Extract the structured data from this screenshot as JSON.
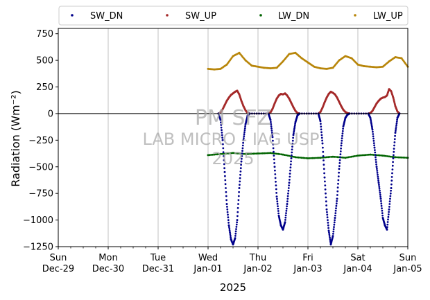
{
  "chart_data": {
    "type": "scatter",
    "title": "",
    "xlabel": "2025",
    "ylabel": "Radiation (Wm⁻²)",
    "ylim": [
      -1250,
      800
    ],
    "xlim": [
      "2024-12-29",
      "2025-01-05"
    ],
    "yticks": [
      750,
      500,
      250,
      0,
      -250,
      -500,
      -750,
      -1000,
      -1250
    ],
    "ytick_labels": [
      "750",
      "500",
      "250",
      "0",
      "−250",
      "−500",
      "−750",
      "−1000",
      "−1250"
    ],
    "xticks": [
      {
        "day": "Sun",
        "date": "Dec-29"
      },
      {
        "day": "Mon",
        "date": "Dec-30"
      },
      {
        "day": "Tue",
        "date": "Dec-31"
      },
      {
        "day": "Wed",
        "date": "Jan-01"
      },
      {
        "day": "Thu",
        "date": "Jan-02"
      },
      {
        "day": "Fri",
        "date": "Jan-03"
      },
      {
        "day": "Sat",
        "date": "Jan-04"
      },
      {
        "day": "Sun",
        "date": "Jan-05"
      }
    ],
    "grid": "vertical",
    "reference_line": 0,
    "legend_position": "top",
    "watermark": [
      "PM SFZ",
      "LAB MICRO - IAG USP",
      "2025"
    ],
    "series": [
      {
        "name": "SW_DN",
        "color": "#00008b",
        "x": [
          "2025-01-01T05:00",
          "2025-01-01T06:00",
          "2025-01-01T07:00",
          "2025-01-01T08:00",
          "2025-01-01T09:00",
          "2025-01-01T10:00",
          "2025-01-01T11:00",
          "2025-01-01T12:00",
          "2025-01-01T13:00",
          "2025-01-01T14:00",
          "2025-01-01T15:00",
          "2025-01-01T16:00",
          "2025-01-01T17:00",
          "2025-01-01T18:00",
          "2025-01-01T19:00",
          "2025-01-01T20:00",
          "2025-01-02T05:00",
          "2025-01-02T06:00",
          "2025-01-02T07:00",
          "2025-01-02T08:00",
          "2025-01-02T09:00",
          "2025-01-02T10:00",
          "2025-01-02T11:00",
          "2025-01-02T12:00",
          "2025-01-02T13:00",
          "2025-01-02T14:00",
          "2025-01-02T15:00",
          "2025-01-02T16:00",
          "2025-01-02T17:00",
          "2025-01-02T18:00",
          "2025-01-02T19:00",
          "2025-01-02T20:00",
          "2025-01-03T05:00",
          "2025-01-03T06:00",
          "2025-01-03T07:00",
          "2025-01-03T08:00",
          "2025-01-03T09:00",
          "2025-01-03T10:00",
          "2025-01-03T11:00",
          "2025-01-03T12:00",
          "2025-01-03T13:00",
          "2025-01-03T14:00",
          "2025-01-03T15:00",
          "2025-01-03T16:00",
          "2025-01-03T17:00",
          "2025-01-03T18:00",
          "2025-01-03T19:00",
          "2025-01-03T20:00",
          "2025-01-04T05:00",
          "2025-01-04T06:00",
          "2025-01-04T07:00",
          "2025-01-04T08:00",
          "2025-01-04T09:00",
          "2025-01-04T10:00",
          "2025-01-04T11:00",
          "2025-01-04T12:00",
          "2025-01-04T13:00",
          "2025-01-04T14:00",
          "2025-01-04T15:00",
          "2025-01-04T16:00",
          "2025-01-04T17:00",
          "2025-01-04T18:00",
          "2025-01-04T19:00",
          "2025-01-04T20:00"
        ],
        "y": [
          0,
          -60,
          -250,
          -550,
          -850,
          -1050,
          -1180,
          -1230,
          -1170,
          -1000,
          -700,
          -450,
          -250,
          -100,
          -20,
          0,
          0,
          -60,
          -220,
          -500,
          -780,
          -960,
          -1050,
          -1090,
          -1020,
          -850,
          -650,
          -420,
          -200,
          -80,
          -15,
          0,
          0,
          -70,
          -280,
          -600,
          -900,
          -1100,
          -1230,
          -1150,
          -980,
          -800,
          -520,
          -300,
          -120,
          -40,
          -10,
          0,
          0,
          -40,
          -150,
          -320,
          -500,
          -650,
          -800,
          -980,
          -1050,
          -1090,
          -900,
          -700,
          -420,
          -180,
          -40,
          0
        ]
      },
      {
        "name": "SW_UP",
        "color": "#a52a2a",
        "x": [
          "2025-01-01T05:00",
          "2025-01-01T06:00",
          "2025-01-01T07:00",
          "2025-01-01T08:00",
          "2025-01-01T09:00",
          "2025-01-01T10:00",
          "2025-01-01T11:00",
          "2025-01-01T12:00",
          "2025-01-01T13:00",
          "2025-01-01T14:00",
          "2025-01-01T15:00",
          "2025-01-01T16:00",
          "2025-01-01T17:00",
          "2025-01-01T18:00",
          "2025-01-01T19:00",
          "2025-01-01T20:00",
          "2025-01-02T05:00",
          "2025-01-02T06:00",
          "2025-01-02T07:00",
          "2025-01-02T08:00",
          "2025-01-02T09:00",
          "2025-01-02T10:00",
          "2025-01-02T11:00",
          "2025-01-02T12:00",
          "2025-01-02T13:00",
          "2025-01-02T14:00",
          "2025-01-02T15:00",
          "2025-01-02T16:00",
          "2025-01-02T17:00",
          "2025-01-02T18:00",
          "2025-01-02T19:00",
          "2025-01-02T20:00",
          "2025-01-03T05:00",
          "2025-01-03T06:00",
          "2025-01-03T07:00",
          "2025-01-03T08:00",
          "2025-01-03T09:00",
          "2025-01-03T10:00",
          "2025-01-03T11:00",
          "2025-01-03T12:00",
          "2025-01-03T13:00",
          "2025-01-03T14:00",
          "2025-01-03T15:00",
          "2025-01-03T16:00",
          "2025-01-03T17:00",
          "2025-01-03T18:00",
          "2025-01-03T19:00",
          "2025-01-03T20:00",
          "2025-01-04T05:00",
          "2025-01-04T06:00",
          "2025-01-04T07:00",
          "2025-01-04T08:00",
          "2025-01-04T09:00",
          "2025-01-04T10:00",
          "2025-01-04T11:00",
          "2025-01-04T12:00",
          "2025-01-04T13:00",
          "2025-01-04T14:00",
          "2025-01-04T15:00",
          "2025-01-04T16:00",
          "2025-01-04T17:00",
          "2025-01-04T18:00",
          "2025-01-04T19:00",
          "2025-01-04T20:00"
        ],
        "y": [
          0,
          10,
          40,
          80,
          120,
          150,
          175,
          190,
          205,
          215,
          180,
          120,
          70,
          30,
          5,
          0,
          0,
          10,
          45,
          95,
          140,
          170,
          185,
          180,
          190,
          170,
          140,
          100,
          60,
          25,
          5,
          0,
          0,
          15,
          55,
          105,
          150,
          185,
          205,
          195,
          180,
          150,
          110,
          70,
          35,
          15,
          5,
          0,
          0,
          5,
          25,
          60,
          95,
          120,
          140,
          150,
          155,
          170,
          230,
          210,
          150,
          70,
          20,
          0
        ]
      },
      {
        "name": "LW_DN",
        "color": "#006400",
        "x": [
          "2025-01-01T00:00",
          "2025-01-01T06:00",
          "2025-01-01T12:00",
          "2025-01-01T18:00",
          "2025-01-02T00:00",
          "2025-01-02T06:00",
          "2025-01-02T12:00",
          "2025-01-02T18:00",
          "2025-01-03T00:00",
          "2025-01-03T06:00",
          "2025-01-03T12:00",
          "2025-01-03T18:00",
          "2025-01-04T00:00",
          "2025-01-04T06:00",
          "2025-01-04T12:00",
          "2025-01-04T18:00",
          "2025-01-05T00:00"
        ],
        "y": [
          -390,
          -380,
          -370,
          -380,
          -375,
          -370,
          -385,
          -410,
          -420,
          -415,
          -405,
          -415,
          -395,
          -385,
          -395,
          -410,
          -415
        ]
      },
      {
        "name": "LW_UP",
        "color": "#b8860b",
        "x": [
          "2025-01-01T00:00",
          "2025-01-01T03:00",
          "2025-01-01T06:00",
          "2025-01-01T09:00",
          "2025-01-01T12:00",
          "2025-01-01T15:00",
          "2025-01-01T18:00",
          "2025-01-01T21:00",
          "2025-01-02T00:00",
          "2025-01-02T03:00",
          "2025-01-02T06:00",
          "2025-01-02T09:00",
          "2025-01-02T12:00",
          "2025-01-02T15:00",
          "2025-01-02T18:00",
          "2025-01-02T21:00",
          "2025-01-03T00:00",
          "2025-01-03T03:00",
          "2025-01-03T06:00",
          "2025-01-03T09:00",
          "2025-01-03T12:00",
          "2025-01-03T15:00",
          "2025-01-03T18:00",
          "2025-01-03T21:00",
          "2025-01-04T00:00",
          "2025-01-04T03:00",
          "2025-01-04T06:00",
          "2025-01-04T09:00",
          "2025-01-04T12:00",
          "2025-01-04T15:00",
          "2025-01-04T18:00",
          "2025-01-04T21:00",
          "2025-01-05T00:00"
        ],
        "y": [
          420,
          415,
          420,
          460,
          540,
          570,
          500,
          450,
          440,
          430,
          425,
          430,
          490,
          560,
          570,
          520,
          480,
          440,
          425,
          420,
          430,
          500,
          540,
          520,
          460,
          445,
          440,
          435,
          440,
          490,
          530,
          520,
          440
        ]
      }
    ]
  }
}
